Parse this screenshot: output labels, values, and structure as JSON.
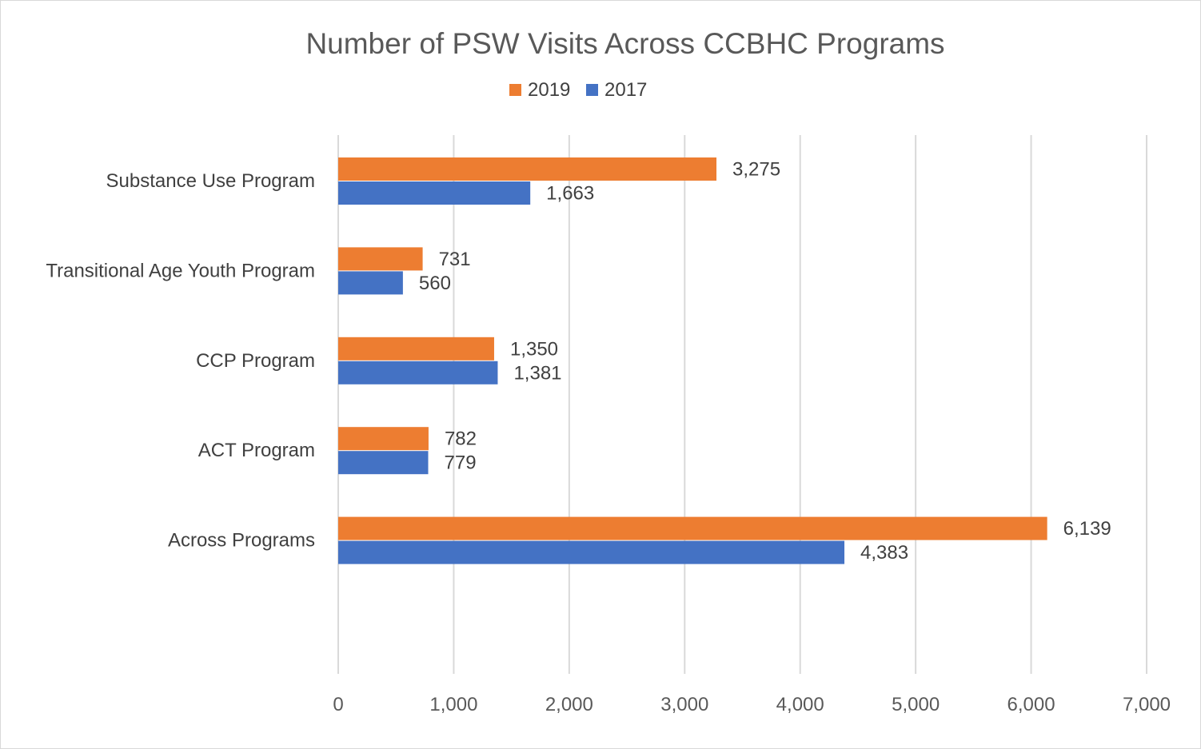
{
  "chart_data": {
    "type": "bar",
    "orientation": "horizontal",
    "title": "Number of PSW Visits Across CCBHC Programs",
    "categories": [
      "Substance Use Program",
      "Transitional Age Youth Program",
      "CCP Program",
      "ACT Program",
      "Across Programs"
    ],
    "series": [
      {
        "name": "2019",
        "color": "#ED7D31",
        "values": [
          3275,
          731,
          1350,
          782,
          6139
        ],
        "labels": [
          "3,275",
          "731",
          "1,350",
          "782",
          "6,139"
        ]
      },
      {
        "name": "2017",
        "color": "#4472C4",
        "values": [
          1663,
          560,
          1381,
          779,
          4383
        ],
        "labels": [
          "1,663",
          "560",
          "1,381",
          "779",
          "4,383"
        ]
      }
    ],
    "xlim": [
      0,
      7000
    ],
    "xticks": [
      0,
      1000,
      2000,
      3000,
      4000,
      5000,
      6000,
      7000
    ],
    "xtick_labels": [
      "0",
      "1,000",
      "2,000",
      "3,000",
      "4,000",
      "5,000",
      "6,000",
      "7,000"
    ],
    "grid": "vertical",
    "legend_position": "top",
    "data_labels": true
  }
}
